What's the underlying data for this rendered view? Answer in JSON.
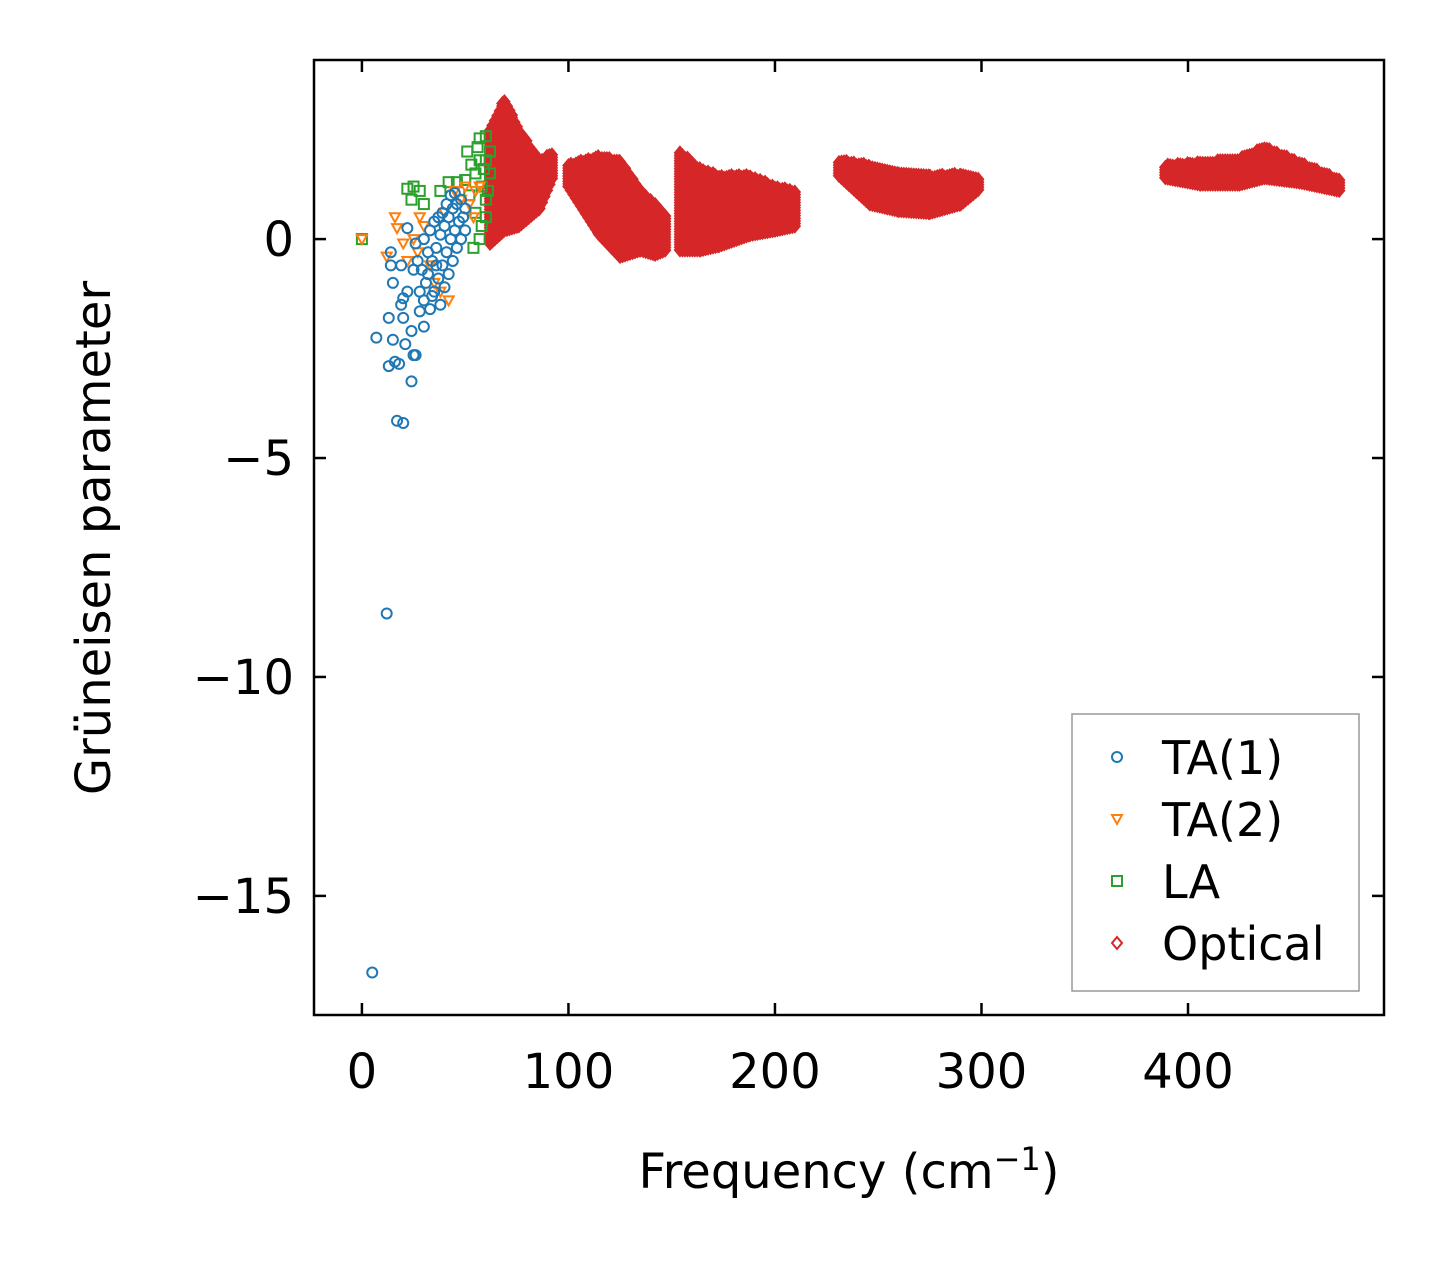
{
  "chart_data": {
    "type": "scatter",
    "title": "",
    "xlabel": "Frequency (cm",
    "xlabel_sup": "−1",
    "xlabel_end": ")",
    "ylabel": "Grüneisen parameter",
    "xlim": [
      -23.2,
      494.9
    ],
    "ylim": [
      -17.72,
      4.09
    ],
    "xticks": [
      0,
      100,
      200,
      300,
      400
    ],
    "xtick_labels": [
      "0",
      "100",
      "200",
      "300",
      "400"
    ],
    "yticks": [
      0,
      -5,
      -10,
      -15
    ],
    "ytick_labels": [
      "0",
      "−5",
      "−10",
      "−15"
    ],
    "grid": false,
    "legend_position": "lower-right",
    "series": [
      {
        "name": "TA(1)",
        "marker": "circle",
        "color": "#1f77b4",
        "points": [
          [
            5,
            -16.75
          ],
          [
            12,
            -8.55
          ],
          [
            20,
            -4.2
          ],
          [
            17,
            -4.15
          ],
          [
            24,
            -3.25
          ],
          [
            13,
            -2.9
          ],
          [
            18,
            -2.85
          ],
          [
            16,
            -2.8
          ],
          [
            7,
            -2.25
          ],
          [
            15,
            -2.3
          ],
          [
            21,
            -2.4
          ],
          [
            25,
            -2.65
          ],
          [
            26,
            -2.65
          ],
          [
            24,
            -2.1
          ],
          [
            13,
            -1.8
          ],
          [
            20,
            -1.8
          ],
          [
            30,
            -2.0
          ],
          [
            28,
            -1.65
          ],
          [
            19,
            -1.5
          ],
          [
            20,
            -1.35
          ],
          [
            22,
            -1.2
          ],
          [
            15,
            -1.0
          ],
          [
            14,
            -0.6
          ],
          [
            14,
            -0.3
          ],
          [
            19,
            -0.6
          ],
          [
            22,
            0.25
          ],
          [
            25,
            -0.7
          ],
          [
            26,
            -0.1
          ],
          [
            27,
            -0.5
          ],
          [
            28,
            -1.2
          ],
          [
            30,
            -1.4
          ],
          [
            31,
            -1.0
          ],
          [
            32,
            -0.8
          ],
          [
            33,
            -1.6
          ],
          [
            34,
            -0.5
          ],
          [
            35,
            -1.2
          ],
          [
            36,
            -0.2
          ],
          [
            37,
            -0.9
          ],
          [
            38,
            -1.5
          ],
          [
            38,
            0.1
          ],
          [
            39,
            -0.6
          ],
          [
            40,
            -1.1
          ],
          [
            40,
            0.3
          ],
          [
            41,
            -0.3
          ],
          [
            42,
            -0.8
          ],
          [
            42,
            0.5
          ],
          [
            43,
            0.0
          ],
          [
            44,
            -0.5
          ],
          [
            44,
            0.7
          ],
          [
            45,
            0.2
          ],
          [
            46,
            -0.2
          ],
          [
            46,
            0.8
          ],
          [
            47,
            0.4
          ],
          [
            48,
            0.0
          ],
          [
            48,
            0.9
          ],
          [
            49,
            0.5
          ],
          [
            50,
            0.2
          ],
          [
            50,
            0.7
          ],
          [
            36,
            -0.6
          ],
          [
            34,
            -1.3
          ],
          [
            32,
            -0.3
          ],
          [
            29,
            -0.7
          ],
          [
            30,
            0.0
          ],
          [
            33,
            0.2
          ],
          [
            35,
            0.4
          ],
          [
            37,
            0.5
          ],
          [
            39,
            0.6
          ],
          [
            41,
            0.8
          ],
          [
            43,
            1.0
          ],
          [
            45,
            1.05
          ]
        ]
      },
      {
        "name": "TA(2)",
        "marker": "triangle-down",
        "color": "#ff7f0e",
        "points": [
          [
            0,
            0
          ],
          [
            12,
            -0.4
          ],
          [
            16,
            0.5
          ],
          [
            17,
            0.25
          ],
          [
            20,
            -0.1
          ],
          [
            22,
            -0.5
          ],
          [
            28,
            0.5
          ],
          [
            30,
            0.3
          ],
          [
            25,
            0.0
          ],
          [
            45,
            1.1
          ],
          [
            50,
            1.2
          ],
          [
            55,
            1.1
          ],
          [
            57,
            1.2
          ],
          [
            48,
            0.9
          ],
          [
            40,
            0.6
          ],
          [
            35,
            -1.0
          ],
          [
            33,
            -0.6
          ],
          [
            38,
            -1.2
          ],
          [
            52,
            0.8
          ],
          [
            54,
            0.5
          ],
          [
            27,
            -0.3
          ],
          [
            42,
            -1.4
          ]
        ]
      },
      {
        "name": "LA",
        "marker": "square",
        "color": "#2ca02c",
        "points": [
          [
            0,
            0
          ],
          [
            22,
            1.15
          ],
          [
            25,
            1.2
          ],
          [
            28,
            1.1
          ],
          [
            24,
            0.9
          ],
          [
            30,
            0.8
          ],
          [
            38,
            1.1
          ],
          [
            42,
            1.3
          ],
          [
            46,
            1.3
          ],
          [
            50,
            1.35
          ],
          [
            52,
            1.0
          ],
          [
            55,
            1.5
          ],
          [
            57,
            1.8
          ],
          [
            51,
            2.0
          ],
          [
            57,
            2.3
          ],
          [
            60,
            2.35
          ],
          [
            58,
            1.2
          ],
          [
            60,
            1.8
          ],
          [
            55,
            0.6
          ],
          [
            60,
            0.9
          ],
          [
            57,
            0.0
          ],
          [
            54,
            -0.2
          ],
          [
            62,
            1.5
          ],
          [
            60,
            0.5
          ],
          [
            56,
            2.1
          ],
          [
            59,
            1.6
          ],
          [
            61,
            1.1
          ],
          [
            58,
            0.3
          ],
          [
            53,
            1.7
          ],
          [
            62,
            2.0
          ]
        ]
      },
      {
        "name": "Optical",
        "marker": "diamond",
        "color": "#d62728",
        "bands": [
          [
            [
              62,
              2.5,
              -0.1
            ],
            [
              69,
              3.2,
              0.2
            ],
            [
              76,
              2.5,
              0.3
            ],
            [
              86,
              1.8,
              0.7
            ],
            [
              93,
              2.0,
              1.5
            ]
          ],
          [
            [
              100,
              1.7,
              1.2
            ],
            [
              115,
              1.9,
              0.1
            ],
            [
              125,
              1.8,
              -0.4
            ],
            [
              135,
              1.1,
              -0.25
            ],
            [
              142,
              0.8,
              -0.35
            ],
            [
              147,
              0.55,
              -0.25
            ]
          ],
          [
            [
              154,
              2.0,
              -0.25
            ],
            [
              164,
              1.6,
              -0.25
            ],
            [
              173,
              1.45,
              -0.15
            ],
            [
              188,
              1.45,
              0.1
            ],
            [
              200,
              1.2,
              0.2
            ],
            [
              210,
              1.1,
              0.3
            ]
          ],
          [
            [
              231,
              1.8,
              1.45
            ],
            [
              246,
              1.7,
              0.8
            ],
            [
              260,
              1.5,
              0.65
            ],
            [
              275,
              1.45,
              0.6
            ],
            [
              290,
              1.5,
              0.8
            ],
            [
              299,
              1.4,
              1.15
            ]
          ],
          [
            [
              389,
              1.7,
              1.4
            ],
            [
              406,
              1.75,
              1.25
            ],
            [
              425,
              1.85,
              1.25
            ],
            [
              437,
              2.1,
              1.4
            ],
            [
              454,
              1.75,
              1.3
            ],
            [
              474,
              1.35,
              1.1
            ]
          ]
        ]
      }
    ]
  }
}
